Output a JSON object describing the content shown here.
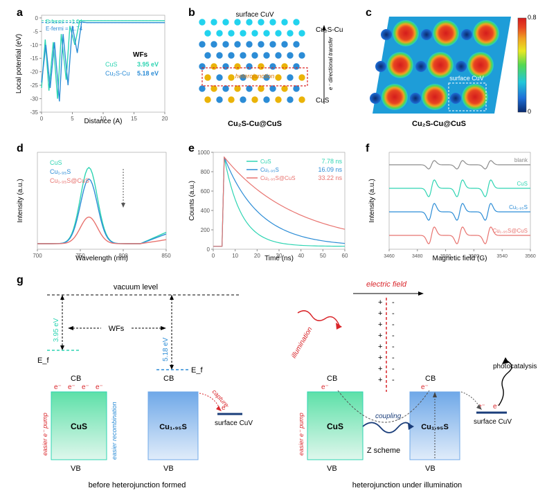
{
  "labels": {
    "a": "a",
    "b": "b",
    "c": "c",
    "d": "d",
    "e": "e",
    "f": "f",
    "g": "g"
  },
  "panel_a": {
    "type": "line",
    "xlabel": "Distance (A)",
    "ylabel": "Local potential (eV)",
    "xlim": [
      0,
      20
    ],
    "ylim": [
      -35,
      1
    ],
    "xticks": [
      0,
      5,
      10,
      15,
      20
    ],
    "yticks": [
      -35,
      -30,
      -25,
      -20,
      -15,
      -10,
      -5,
      0
    ],
    "wfs_title": "WFs",
    "legend": [
      {
        "name": "CuS",
        "wf": "3.95 eV",
        "color": "#2dd4b2"
      },
      {
        "name": "Cu₂S-Cu",
        "wf": "5.18 eV",
        "color": "#2b8cd6"
      }
    ],
    "efermi": [
      {
        "label": "E-fermi = -1.04",
        "y": -1.04,
        "color": "#2dd4b2"
      },
      {
        "label": "E-fermi = -1.74",
        "y": -1.74,
        "color": "#2b8cd6"
      }
    ],
    "series": {
      "cus": {
        "color": "#2dd4b2",
        "pts": [
          [
            0,
            -26
          ],
          [
            0.6,
            -8
          ],
          [
            1.2,
            -27
          ],
          [
            1.9,
            -9
          ],
          [
            2.6,
            -30
          ],
          [
            3.2,
            -6
          ],
          [
            4,
            -23
          ],
          [
            4.6,
            -3
          ],
          [
            5.4,
            -10
          ],
          [
            6.2,
            -1
          ],
          [
            7,
            -1.04
          ],
          [
            8,
            -1.04
          ],
          [
            10,
            -1.04
          ],
          [
            14,
            -1.04
          ],
          [
            20,
            -1.04
          ]
        ]
      },
      "cu2s": {
        "color": "#2b8cd6",
        "pts": [
          [
            0,
            -24
          ],
          [
            0.7,
            -10
          ],
          [
            1.4,
            -26
          ],
          [
            2.1,
            -9
          ],
          [
            2.9,
            -31
          ],
          [
            3.5,
            -6
          ],
          [
            4.3,
            -25
          ],
          [
            5,
            -3
          ],
          [
            5.8,
            -13
          ],
          [
            6.5,
            -1.5
          ],
          [
            7.3,
            -1.74
          ],
          [
            9,
            -1.74
          ],
          [
            12,
            -1.74
          ],
          [
            20,
            -1.74
          ]
        ]
      }
    },
    "bg": "#ffffff",
    "axis_color": "#888",
    "tick_fontsize": 8,
    "label_fontsize": 10
  },
  "panel_b": {
    "type": "diagram",
    "title_top": "surface CuV",
    "title_bottom": "Cu₂S-Cu@CuS",
    "right_top": "Cu₂S-Cu",
    "right_bot": "CuS",
    "arrow_label": "e⁻ directional transfer",
    "hetero_label": "heterojunction",
    "hetero_color": "#d97706",
    "box_color": "#dc2626",
    "atom_colors": {
      "cu": "#2b8cd6",
      "s": "#eab308",
      "cu2": "#22d3ee"
    }
  },
  "panel_c": {
    "type": "heatmap",
    "title_bottom": "Cu₂S-Cu@CuS",
    "surface_label": "surface CuV",
    "colorbar": {
      "min": 0,
      "max": 0.8,
      "colors": [
        "#0a2a6e",
        "#1e6fd8",
        "#22c7d8",
        "#52d852",
        "#e8e822",
        "#f0a322",
        "#e84522",
        "#d41c1c"
      ]
    },
    "grid": "3x3",
    "blob_color": "#e84522",
    "bg_grad": [
      "#1e6fd8",
      "#22c7d8"
    ],
    "box_color": "#ffffff"
  },
  "panel_d": {
    "type": "line",
    "xlabel": "Wavelength (nm)",
    "ylabel": "Intensity (a.u.)",
    "xlim": [
      700,
      850
    ],
    "xticks": [
      700,
      750,
      800,
      850
    ],
    "series": [
      {
        "name": "CuS",
        "color": "#2dd4b2",
        "peak": 760,
        "height": 1.0
      },
      {
        "name": "Cu₁.₉₅S",
        "color": "#2b8cd6",
        "peak": 760,
        "height": 0.85
      },
      {
        "name": "Cu₁.₉₅S@CuS",
        "color": "#e8736f",
        "peak": 760,
        "height": 0.35
      }
    ],
    "arrow_color": "#555"
  },
  "panel_e": {
    "type": "decay",
    "xlabel": "Time (ns)",
    "ylabel": "Counts (a.u.)",
    "xlim": [
      0,
      60
    ],
    "xticks": [
      0,
      10,
      20,
      30,
      40,
      50,
      60
    ],
    "ylim": [
      0,
      1000
    ],
    "yticks": [
      0,
      200,
      400,
      600,
      800,
      1000
    ],
    "series": [
      {
        "name": "CuS",
        "tau": "7.78 ns",
        "color": "#2dd4b2"
      },
      {
        "name": "Cu₁.₉₅S",
        "tau": "16.09 ns",
        "color": "#2b8cd6"
      },
      {
        "name": "Cu₁.₉₅S@CuS",
        "tau": "33.22 ns",
        "color": "#e8736f"
      }
    ]
  },
  "panel_f": {
    "type": "epr",
    "xlabel": "Magnetic field (G)",
    "ylabel": "Intensity (a.u.)",
    "xlim": [
      3460,
      3560
    ],
    "xticks": [
      3460,
      3480,
      3500,
      3520,
      3540,
      3560
    ],
    "series": [
      {
        "name": "blank",
        "color": "#8a8a8a"
      },
      {
        "name": "CuS",
        "color": "#2dd4b2"
      },
      {
        "name": "Cu₁.₉₅S",
        "color": "#2b8cd6"
      },
      {
        "name": "Cu₁.₉₅S@CuS",
        "color": "#e8736f"
      }
    ],
    "peaks": [
      3490,
      3510,
      3530
    ]
  },
  "panel_g": {
    "type": "schematic",
    "vacuum": "vacuum level",
    "wfs": "WFs",
    "ef": "E_f",
    "cb": "CB",
    "vb": "VB",
    "cus_label": "CuS",
    "cu195_label": "Cu₁.₉₅S",
    "cuv_label": "surface CuV",
    "wf1": "3.95 eV",
    "wf2": "5.18 eV",
    "left_caption": "before heterojunction formed",
    "right_caption": "heterojunction under illumination",
    "easier_pump": "easier e⁻ pump",
    "easier_recomb": "easier recombination",
    "capture": "capture",
    "electric_field": "electric field",
    "illumination": "illumination",
    "coupling": "coupling",
    "zscheme": "Z scheme",
    "photocat": "photocatalysis",
    "e_minus": "e⁻",
    "plus": "+",
    "minus": "-",
    "cus_color": "#5de0a8",
    "cu195_color": "#6fa8e8",
    "ef_color_g": "#2dd4b2",
    "ef_color_b": "#2b8cd6",
    "red": "#d9252a",
    "blue_dark": "#1a3d7a"
  }
}
